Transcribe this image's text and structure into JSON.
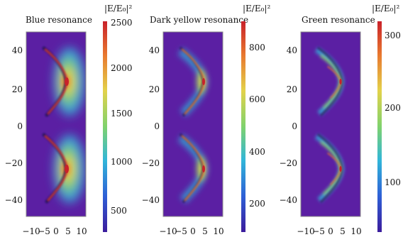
{
  "figure": {
    "panels": [
      {
        "title": "Blue resonance",
        "colorbar": {
          "label": "|E/E₀|²",
          "ticks": [
            "2500",
            "2000",
            "1500",
            "1000",
            "500"
          ],
          "max": 2500,
          "min": 300
        },
        "x_ticks": [
          "−10",
          "−5",
          "0",
          "5",
          "10"
        ],
        "y_ticks": [
          "40",
          "20",
          "0",
          "−20",
          "−40"
        ],
        "glow": "broad"
      },
      {
        "title": "Dark yellow resonance",
        "colorbar": {
          "label": "|E/E₀|²",
          "ticks": [
            "800",
            "600",
            "400",
            "200"
          ],
          "max": 900,
          "min": 80
        },
        "x_ticks": [
          "−10",
          "−5",
          "0",
          "5",
          "10"
        ],
        "y_ticks": [
          "40",
          "20",
          "0",
          "−20",
          "−40"
        ],
        "glow": "medium"
      },
      {
        "title": "Green resonance",
        "colorbar": {
          "label": "|E/E₀|²",
          "ticks": [
            "300",
            "200",
            "100"
          ],
          "max": 330,
          "min": 30
        },
        "x_ticks": [
          "−10",
          "−5",
          "0",
          "5",
          "10"
        ],
        "y_ticks": [
          "40",
          "20",
          "0",
          "−20",
          "−40"
        ],
        "glow": "narrow"
      }
    ],
    "colors": {
      "background": "#5b1fa3",
      "colormap": [
        "#3b1c9c",
        "#2e5fd6",
        "#31b6d9",
        "#7fd26d",
        "#e3d24a",
        "#e8782f",
        "#c9212a"
      ]
    }
  }
}
